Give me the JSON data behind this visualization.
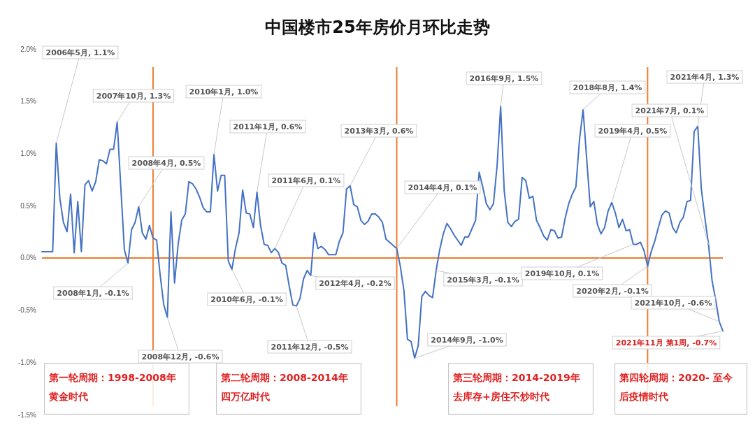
{
  "chart_data": {
    "type": "line",
    "title": "中国楼市25年房价月环比走势",
    "color": "#4472c4",
    "line_style": "solid",
    "grid": false,
    "tick_labels": "y",
    "ylim": [
      -1.5,
      2
    ],
    "yticks": [
      {
        "value": -1.5,
        "label": "-1.5%"
      },
      {
        "value": -1,
        "label": "-1.0%"
      },
      {
        "value": -0.5,
        "label": "-0.5%"
      },
      {
        "value": 0,
        "label": "0.0%"
      },
      {
        "value": 0.5,
        "label": "0.5%"
      },
      {
        "value": 1,
        "label": "1.0%"
      },
      {
        "value": 1.5,
        "label": "1.5%"
      },
      {
        "value": 2,
        "label": "2.0%"
      }
    ],
    "categories": [
      null,
      null,
      null,
      null,
      null,
      null,
      null,
      null,
      null,
      null,
      null,
      null,
      null,
      null,
      null,
      null,
      null,
      null,
      null,
      null,
      null,
      null,
      null,
      null,
      null,
      null,
      null,
      null,
      null,
      null,
      null,
      null,
      null,
      null,
      null,
      null,
      null,
      null,
      null,
      null,
      null,
      null,
      null,
      null,
      null,
      null,
      null,
      null,
      null,
      null,
      null,
      null,
      null,
      null,
      null,
      null,
      null,
      null,
      null,
      null,
      null,
      null,
      null,
      null,
      null,
      null,
      null,
      null,
      null,
      null,
      null,
      null,
      null,
      null,
      null,
      null,
      null,
      null,
      null,
      null,
      null,
      null,
      null,
      null,
      null,
      null,
      null,
      null,
      null,
      null,
      null,
      null,
      null,
      null,
      null,
      null,
      null,
      null,
      null,
      null,
      null,
      null,
      null,
      null,
      null,
      null,
      null,
      null,
      null,
      null,
      null,
      null,
      null,
      null,
      null,
      null,
      null,
      null,
      null,
      null,
      null,
      null,
      null,
      null,
      null,
      null,
      null,
      null,
      null,
      null,
      null,
      null,
      null,
      null,
      null,
      null,
      null,
      null,
      null,
      null,
      null,
      null,
      null,
      null,
      null,
      null,
      null,
      null,
      null,
      null,
      null,
      null,
      null,
      null,
      null,
      null,
      null,
      null,
      null,
      null,
      null,
      null,
      null,
      null,
      null,
      null,
      null,
      null,
      null,
      null,
      null,
      null,
      null,
      null,
      null,
      null,
      null,
      null,
      null,
      null,
      null,
      null,
      null,
      null,
      null,
      null,
      null,
      null,
      null,
      null,
      null
    ],
    "values": [
      0.06,
      0.06,
      0.06,
      0.06,
      1.1,
      0.57,
      0.34,
      0.25,
      0.61,
      0.05,
      0.54,
      0.06,
      0.7,
      0.74,
      0.64,
      0.73,
      0.94,
      0.93,
      0.9,
      1.04,
      1.04,
      1.3,
      0.68,
      0.08,
      -0.05,
      0.27,
      0.34,
      0.49,
      0.24,
      0.18,
      0.31,
      0.19,
      0.17,
      -0.17,
      -0.45,
      -0.57,
      0.44,
      -0.24,
      0.13,
      0.36,
      0.42,
      0.73,
      0.71,
      0.66,
      0.58,
      0.48,
      0.44,
      0.44,
      0.99,
      0.64,
      0.79,
      0.79,
      -0.03,
      -0.11,
      0.09,
      0.24,
      0.65,
      0.43,
      0.42,
      0.29,
      0.63,
      0.31,
      0.13,
      0.12,
      0.05,
      0.09,
      0.05,
      -0.05,
      -0.07,
      -0.27,
      -0.45,
      -0.46,
      -0.39,
      -0.2,
      -0.12,
      -0.17,
      0.24,
      0.09,
      0.11,
      0.08,
      0.03,
      0.03,
      0.03,
      0.16,
      0.24,
      0.66,
      0.69,
      0.51,
      0.49,
      0.36,
      0.32,
      0.35,
      0.42,
      0.42,
      0.39,
      0.34,
      0.18,
      0.15,
      0.12,
      0.09,
      -0.08,
      -0.31,
      -0.78,
      -0.8,
      -0.96,
      -0.84,
      -0.37,
      -0.32,
      -0.36,
      -0.38,
      -0.12,
      0.08,
      0.23,
      0.33,
      0.28,
      0.22,
      0.17,
      0.12,
      0.2,
      0.2,
      0.28,
      0.36,
      0.82,
      0.68,
      0.52,
      0.46,
      0.52,
      0.88,
      1.45,
      0.64,
      0.34,
      0.3,
      0.35,
      0.37,
      0.77,
      0.74,
      0.57,
      0.59,
      0.36,
      0.29,
      0.21,
      0.17,
      0.27,
      0.26,
      0.19,
      0.2,
      0.38,
      0.52,
      0.61,
      0.68,
      1.13,
      1.42,
      0.95,
      0.49,
      0.54,
      0.32,
      0.23,
      0.29,
      0.45,
      0.53,
      0.43,
      0.29,
      0.37,
      0.26,
      0.27,
      0.13,
      0.13,
      0.15,
      0.07,
      -0.08,
      0.06,
      0.16,
      0.29,
      0.41,
      0.45,
      0.43,
      0.29,
      0.24,
      0.34,
      0.39,
      0.54,
      0.55,
      1.21,
      1.26,
      0.66,
      0.38,
      0.13,
      -0.22,
      -0.4,
      -0.61,
      -0.7
    ],
    "ref_lines": [
      {
        "axis": "y",
        "value": 0,
        "color": "#ed7d31"
      }
    ],
    "annotations": [
      "2006年5月, 1.1%",
      "2007年10月, 1.3%",
      "2008年4月, 0.5%",
      "2008年1月, -0.1%",
      "2008年12月, -0.6%",
      "2010年1月, 1.0%",
      "2010年6月, -0.1%",
      "2011年1月, 0.6%",
      "2011年6月, 0.1%",
      "2011年12月, -0.5%",
      "2012年4月, -0.2%",
      "2013年3月, 0.6%",
      "2014年4月, 0.1%",
      "2014年9月, -1.0%",
      "2015年3月, -0.1%",
      "2016年9月, 1.5%",
      "2018年8月, 1.4%",
      "2019年4月, 0.5%",
      "2019年10月, 0.1%",
      "2020年2月, -0.1%",
      "2021年4月, 1.3%",
      "2021年7月, 0.1%",
      "2021年10月, -0.6%",
      "2021年11月 第1周, -0.7%",
      "第一轮周期：1998-2008年黄金时代",
      "第二轮周期：2008-2014年四万亿时代",
      "第三轮周期：2014-2019年去库存+房住不炒时代",
      "第四轮周期：2020- 至今后疫情时代"
    ]
  }
}
